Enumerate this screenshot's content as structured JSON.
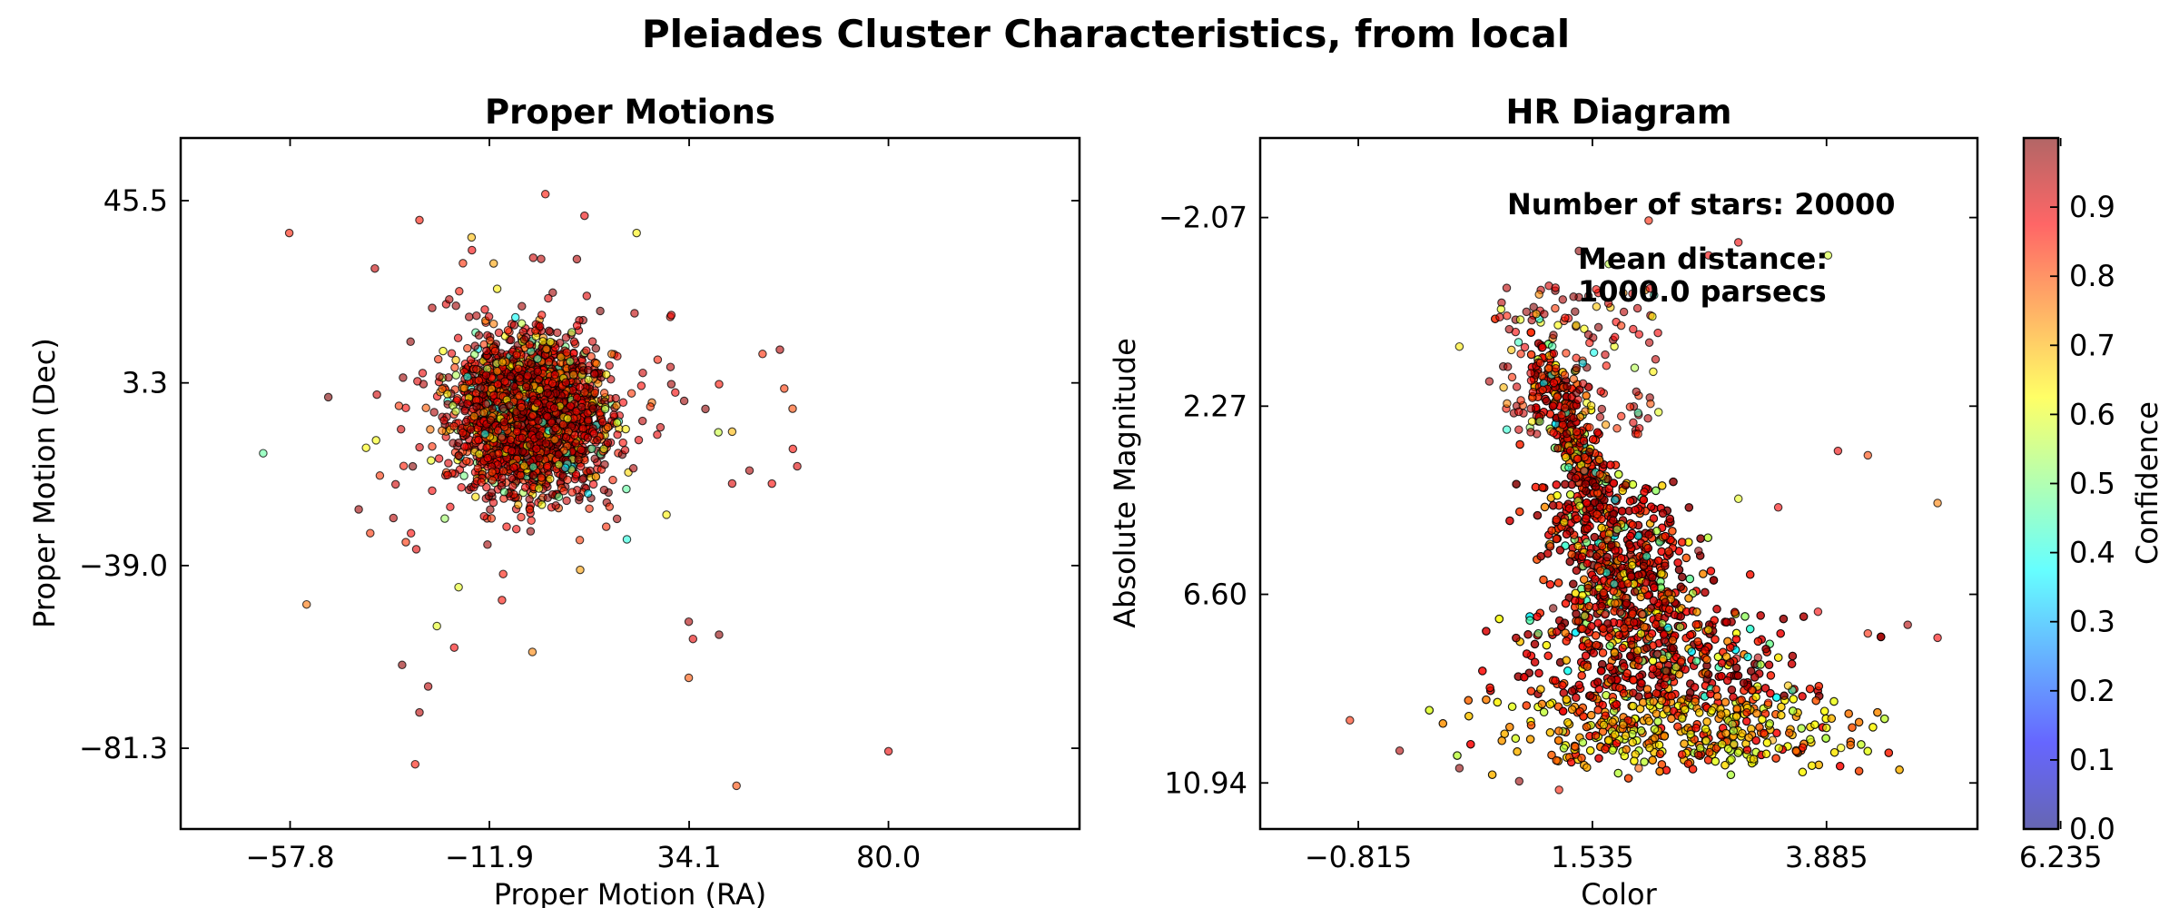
{
  "figure": {
    "suptitle": "Pleiades Cluster Characteristics, from local"
  },
  "colorbar": {
    "label": "Confidence",
    "ticks": [
      "0.0",
      "0.1",
      "0.2",
      "0.3",
      "0.4",
      "0.5",
      "0.6",
      "0.7",
      "0.8",
      "0.9"
    ],
    "tick_values": [
      0.0,
      0.1,
      0.2,
      0.3,
      0.4,
      0.5,
      0.6,
      0.7,
      0.8,
      0.9
    ],
    "range": [
      0.0,
      1.0
    ],
    "colormap": "jet",
    "colormap_stops": [
      "#00007f",
      "#0000ff",
      "#007fff",
      "#00ffff",
      "#7fff7f",
      "#ffff00",
      "#ff7f00",
      "#ff0000",
      "#7f0000"
    ]
  },
  "chart_data": [
    {
      "type": "scatter",
      "title": "Proper Motions",
      "xlabel": "Proper Motion (RA)",
      "ylabel": "Proper Motion (Dec)",
      "xlim": [
        -83.0,
        124.0
      ],
      "ylim": [
        -100.0,
        60.0
      ],
      "xticks": [
        -57.8,
        -11.9,
        34.1,
        80.0
      ],
      "xtick_labels": [
        "−57.8",
        "−11.9",
        "34.1",
        "80.0"
      ],
      "yticks": [
        45.5,
        3.3,
        -39.0,
        -81.3
      ],
      "ytick_labels": [
        "45.5",
        "3.3",
        "−39.0",
        "−81.3"
      ],
      "grid": false,
      "point_count_note": "dense elliptical cloud of ~20000 points centered near (-3, -3), plus sparse outliers",
      "cluster": {
        "center": [
          -3.0,
          -4.0
        ],
        "spread": [
          8.0,
          8.0
        ]
      },
      "outliers": [
        [
          -58,
          38
        ],
        [
          -64,
          -13
        ],
        [
          -54,
          -48
        ],
        [
          -49,
          0
        ],
        [
          -38,
          -10
        ],
        [
          -42,
          -26
        ],
        [
          -28,
          41
        ],
        [
          -34,
          -28
        ],
        [
          -32,
          -62
        ],
        [
          -28,
          -73
        ],
        [
          -29,
          -85
        ],
        [
          -26,
          -67
        ],
        [
          -24,
          -53
        ],
        [
          -20,
          -58
        ],
        [
          -19,
          -44
        ],
        [
          1,
          47
        ],
        [
          10,
          42
        ],
        [
          0,
          32
        ],
        [
          -16,
          37
        ],
        [
          -18,
          31
        ],
        [
          22,
          38
        ],
        [
          30,
          19
        ],
        [
          34,
          -52
        ],
        [
          34,
          -65
        ],
        [
          35,
          -56
        ],
        [
          41,
          -55
        ],
        [
          44,
          -20
        ],
        [
          48,
          -17
        ],
        [
          51,
          10
        ],
        [
          56,
          2
        ],
        [
          55,
          11
        ],
        [
          58,
          -12
        ],
        [
          59,
          -16
        ],
        [
          45,
          -90
        ],
        [
          80,
          -82
        ],
        [
          -2,
          -59
        ],
        [
          9,
          -40
        ],
        [
          15,
          -30
        ],
        [
          -9,
          -47
        ],
        [
          30,
          3
        ],
        [
          41,
          3
        ],
        [
          44,
          -8
        ]
      ]
    },
    {
      "type": "scatter",
      "title": "HR Diagram",
      "xlabel": "Color",
      "ylabel": "Absolute Magnitude",
      "xlim": [
        -1.8,
        5.4
      ],
      "ylim": [
        12.0,
        -3.9
      ],
      "y_inverted": true,
      "xticks": [
        -0.815,
        1.535,
        3.885,
        6.235
      ],
      "xtick_labels": [
        "−0.815",
        "1.535",
        "3.885",
        "6.235"
      ],
      "yticks": [
        -2.07,
        2.27,
        6.6,
        10.94
      ],
      "ytick_labels": [
        "−2.07",
        "2.27",
        "6.60",
        "10.94"
      ],
      "grid": false,
      "annotations": [
        {
          "text": "Number of stars: 20000",
          "at": [
            1.4,
            -2.5
          ]
        },
        {
          "text_lines": [
            "Mean distance:",
            "1000.0 parsecs"
          ],
          "at": [
            1.8,
            -1.5
          ]
        }
      ],
      "point_count_note": "main-sequence band of ~20000 points running from (0.9, 0.6) to (2.5, 10.3)",
      "outliers": [
        [
          1.4,
          -1.3
        ],
        [
          1.7,
          -1.0
        ],
        [
          2.1,
          -2.0
        ],
        [
          2.7,
          -1.2
        ],
        [
          3.0,
          -1.5
        ],
        [
          3.9,
          -1.2
        ],
        [
          6.2,
          1.9
        ],
        [
          4.0,
          3.3
        ],
        [
          4.3,
          3.4
        ],
        [
          5.0,
          4.5
        ],
        [
          3.4,
          4.6
        ],
        [
          2.6,
          5.6
        ],
        [
          3.0,
          4.4
        ],
        [
          4.7,
          7.3
        ],
        [
          5.0,
          7.6
        ],
        [
          4.3,
          7.5
        ],
        [
          3.8,
          7.0
        ],
        [
          -0.9,
          9.5
        ],
        [
          -0.4,
          10.2
        ],
        [
          0.2,
          10.6
        ],
        [
          0.8,
          10.9
        ],
        [
          1.2,
          11.1
        ],
        [
          2.0,
          10.6
        ],
        [
          2.6,
          10.3
        ],
        [
          3.3,
          9.1
        ],
        [
          3.5,
          8.7
        ],
        [
          0.5,
          1.7
        ],
        [
          1.0,
          -0.3
        ],
        [
          0.7,
          0.5
        ],
        [
          0.2,
          0.9
        ]
      ]
    }
  ]
}
